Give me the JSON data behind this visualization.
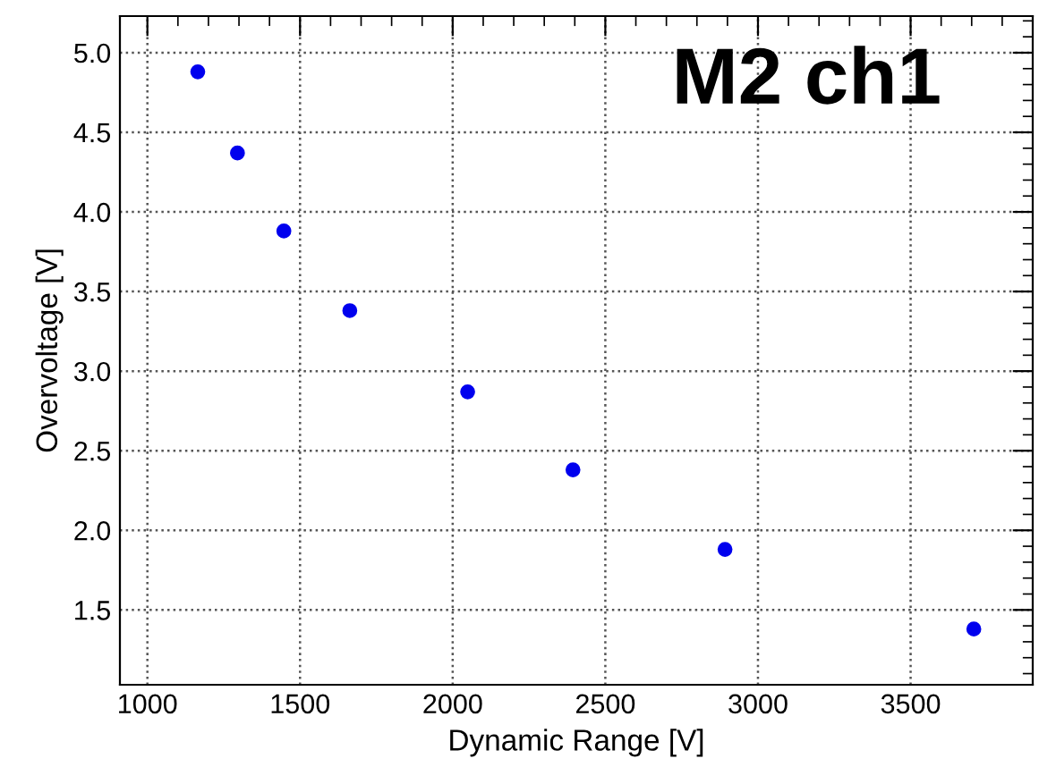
{
  "chart_data": {
    "type": "scatter",
    "xlabel": "Dynamic Range [V]",
    "ylabel": "Overvoltage [V]",
    "annotations": [
      "M2 ch1"
    ],
    "x": [
      1165,
      1295,
      1447,
      1663,
      2049,
      2394,
      2892,
      3707
    ],
    "series": [
      {
        "color": "#0000ee",
        "values": [
          4.88,
          4.37,
          3.88,
          3.38,
          2.87,
          2.38,
          1.88,
          1.38
        ]
      }
    ],
    "xlim": [
      910,
      3900
    ],
    "xticks": [
      1000,
      1500,
      2000,
      2500,
      3000,
      3500
    ],
    "ylim": [
      1.03,
      5.23
    ],
    "yticks": [
      1.5,
      {
        "value": 2,
        "label": "2.0"
      },
      2.5,
      {
        "value": 3,
        "label": "3.0"
      },
      3.5,
      {
        "value": 4,
        "label": "4.0"
      },
      4.5,
      {
        "value": 5,
        "label": "5.0"
      }
    ],
    "grid": true,
    "marker": "circle",
    "legend": false
  }
}
